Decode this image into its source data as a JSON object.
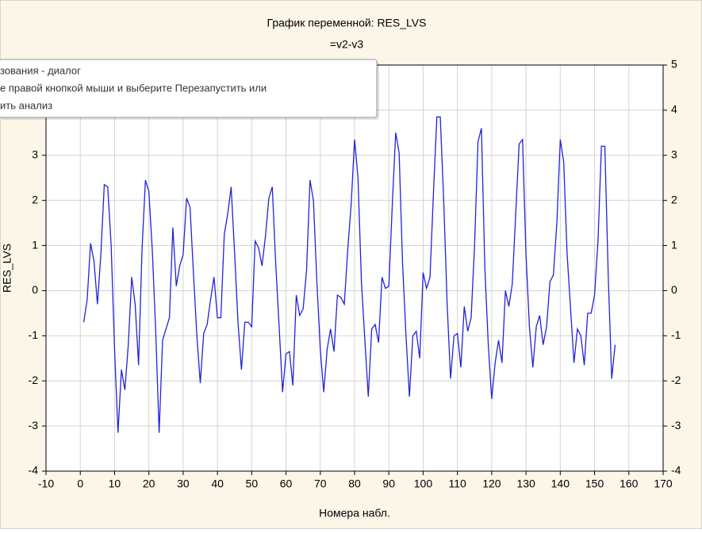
{
  "chart_data": {
    "type": "line",
    "title": "График переменной: RES_LVS",
    "subtitle": "=v2-v3",
    "x_label": "Номера набл.",
    "y_label": "RES_LVS",
    "color": "#2222dd",
    "grid": true,
    "mirror_y_axis": true,
    "x": [
      1,
      2,
      3,
      4,
      5,
      6,
      7,
      8,
      9,
      10,
      11,
      12,
      13,
      14,
      15,
      16,
      17,
      18,
      19,
      20,
      21,
      22,
      23,
      24,
      25,
      26,
      27,
      28,
      29,
      30,
      31,
      32,
      33,
      34,
      35,
      36,
      37,
      38,
      39,
      40,
      41,
      42,
      43,
      44,
      45,
      46,
      47,
      48,
      49,
      50,
      51,
      52,
      53,
      54,
      55,
      56,
      57,
      58,
      59,
      60,
      61,
      62,
      63,
      64,
      65,
      66,
      67,
      68,
      69,
      70,
      71,
      72,
      73,
      74,
      75,
      76,
      77,
      78,
      79,
      80,
      81,
      82,
      83,
      84,
      85,
      86,
      87,
      88,
      89,
      90,
      91,
      92,
      93,
      94,
      95,
      96,
      97,
      98,
      99,
      100,
      101,
      102,
      103,
      104,
      105,
      106,
      107,
      108,
      109,
      110,
      111,
      112,
      113,
      114,
      115,
      116,
      117,
      118,
      119,
      120,
      121,
      122,
      123,
      124,
      125,
      126,
      127,
      128,
      129,
      130,
      131,
      132,
      133,
      134,
      135,
      136,
      137,
      138,
      139,
      140,
      141,
      142,
      143,
      144,
      145,
      146,
      147,
      148,
      149,
      150,
      151,
      152,
      153,
      154,
      155,
      156
    ],
    "values": [
      -0.7,
      -0.2,
      1.05,
      0.65,
      -0.3,
      0.8,
      2.35,
      2.3,
      1.0,
      -1.3,
      -3.15,
      -1.75,
      -2.2,
      -1.2,
      0.3,
      -0.3,
      -1.65,
      0.9,
      2.45,
      2.2,
      0.9,
      -0.9,
      -3.15,
      -1.1,
      -0.85,
      -0.6,
      1.4,
      0.1,
      0.55,
      0.8,
      2.05,
      1.85,
      0.4,
      -1.0,
      -2.05,
      -0.95,
      -0.75,
      -0.2,
      0.3,
      -0.6,
      -0.6,
      1.25,
      1.7,
      2.3,
      0.85,
      -0.7,
      -1.75,
      -0.7,
      -0.7,
      -0.8,
      1.1,
      0.95,
      0.55,
      1.2,
      2.05,
      2.3,
      0.6,
      -0.8,
      -2.25,
      -1.4,
      -1.35,
      -2.1,
      -0.1,
      -0.55,
      -0.4,
      0.45,
      2.45,
      2.0,
      0.2,
      -1.3,
      -2.25,
      -1.3,
      -0.85,
      -1.35,
      -0.1,
      -0.15,
      -0.3,
      0.9,
      1.9,
      3.35,
      2.5,
      0.2,
      -1.1,
      -2.35,
      -0.85,
      -0.75,
      -1.15,
      0.3,
      0.05,
      0.1,
      1.9,
      3.5,
      3.05,
      0.6,
      -1.0,
      -2.35,
      -1.0,
      -0.9,
      -1.5,
      0.4,
      0.05,
      0.3,
      2.15,
      3.85,
      3.85,
      2.0,
      -0.3,
      -1.95,
      -1.0,
      -0.95,
      -1.7,
      -0.35,
      -0.9,
      -0.6,
      1.0,
      3.3,
      3.6,
      0.5,
      -1.2,
      -2.4,
      -1.6,
      -1.1,
      -1.6,
      0.0,
      -0.35,
      0.15,
      1.7,
      3.25,
      3.35,
      0.8,
      -0.8,
      -1.7,
      -0.8,
      -0.55,
      -1.2,
      -0.8,
      0.2,
      0.35,
      1.5,
      3.35,
      2.85,
      0.8,
      -0.4,
      -1.6,
      -0.85,
      -1.0,
      -1.65,
      -0.5,
      -0.5,
      -0.1,
      1.1,
      3.2,
      3.2,
      0.3,
      -1.95,
      -1.2
    ],
    "xlim": [
      -10,
      170
    ],
    "xticks": [
      -10,
      0,
      10,
      20,
      30,
      40,
      50,
      60,
      70,
      80,
      90,
      100,
      110,
      120,
      130,
      140,
      150,
      160,
      170
    ],
    "ylim": [
      -4,
      5
    ],
    "yticks": [
      -4,
      -3,
      -2,
      -1,
      0,
      1,
      2,
      3,
      4,
      5
    ]
  },
  "tooltip": {
    "lines": [
      "зования - диалог",
      "е правой кнопкой мыши и выберите Перезапустить или",
      "ить анализ"
    ]
  }
}
